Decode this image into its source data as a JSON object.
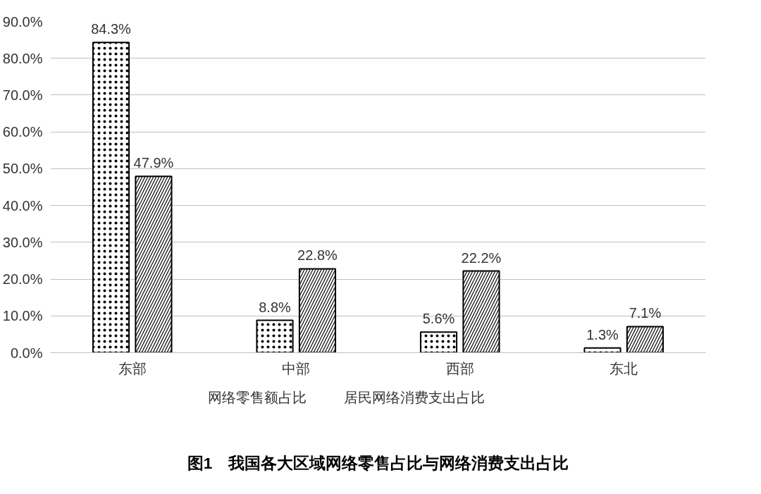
{
  "chart_data": {
    "type": "bar",
    "title": "图1　我国各大区域网络零售占比与网络消费支出占比",
    "categories": [
      "东部",
      "中部",
      "西部",
      "东北"
    ],
    "series": [
      {
        "name": "网络零售额占比",
        "color": "#ffffff",
        "values": [
          84.3,
          8.8,
          5.6,
          1.3
        ],
        "value_labels": [
          "84.3%",
          "8.8%",
          "5.6%",
          "1.3%"
        ]
      },
      {
        "name": "居民网络消费支出占比",
        "color": "#ffffff",
        "values": [
          47.9,
          22.8,
          22.2,
          7.1
        ],
        "value_labels": [
          "47.9%",
          "22.8%",
          "22.2%",
          "7.1%"
        ]
      }
    ],
    "ylim": [
      0,
      90
    ],
    "yticks": [
      {
        "value": 0,
        "label": "0.0%"
      },
      {
        "value": 10,
        "label": "10.0%"
      },
      {
        "value": 20,
        "label": "20.0%"
      },
      {
        "value": 30,
        "label": "30.0%"
      },
      {
        "value": 40,
        "label": "40.0%"
      },
      {
        "value": 50,
        "label": "50.0%"
      },
      {
        "value": 60,
        "label": "60.0%"
      },
      {
        "value": 70,
        "label": "70.0%"
      },
      {
        "value": 80,
        "label": "80.0%"
      },
      {
        "value": 90,
        "label": "90.0%"
      }
    ],
    "grid": "y",
    "legend": "bottom"
  }
}
